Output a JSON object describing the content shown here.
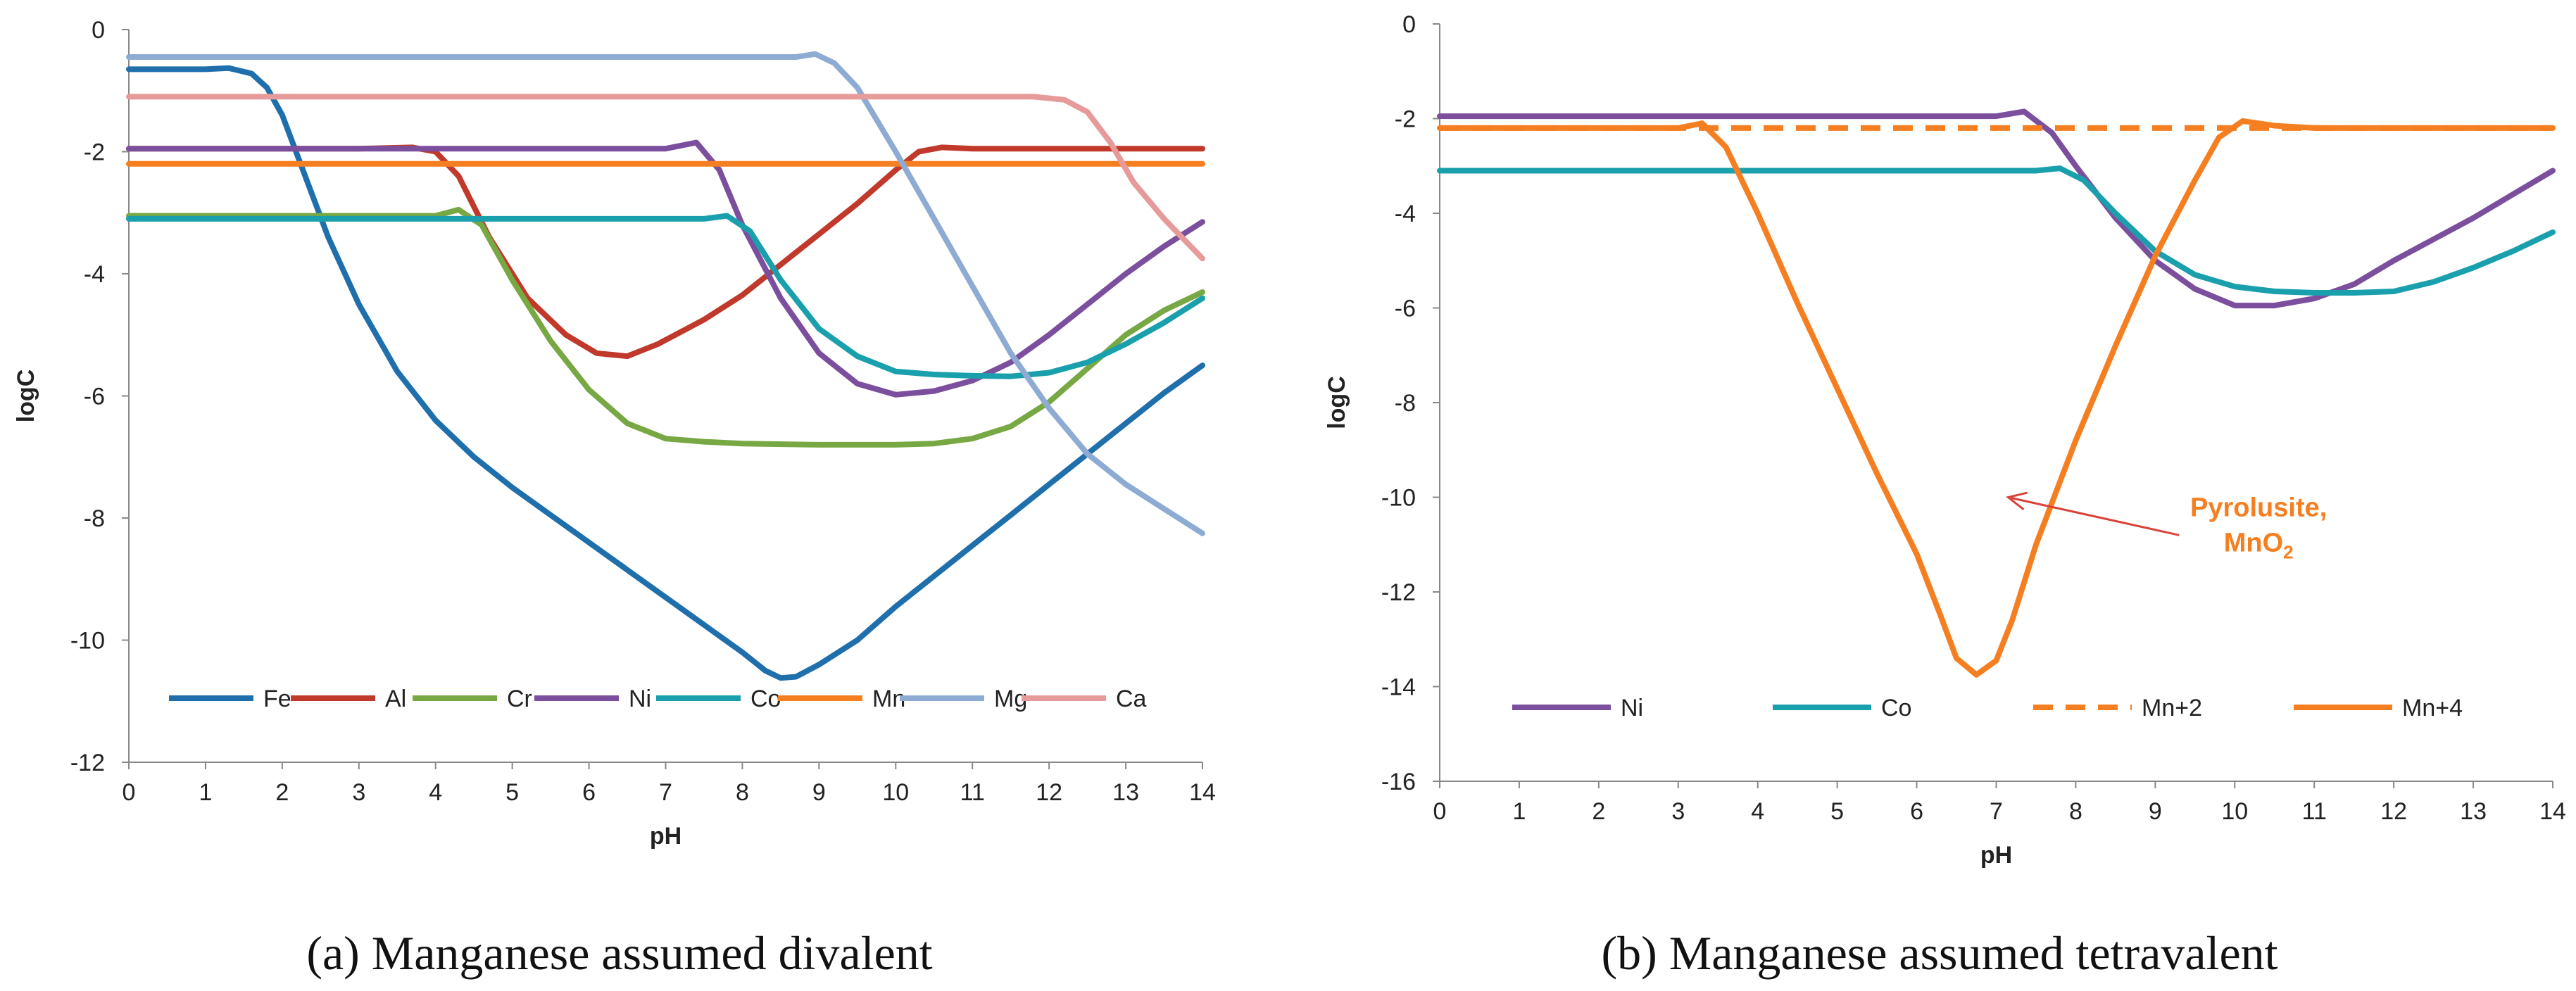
{
  "chart_data": [
    {
      "type": "line",
      "caption": "(a) Manganese assumed divalent",
      "xlabel": "pH",
      "ylabel": "logC",
      "xlim": [
        0,
        14
      ],
      "ylim": [
        -12,
        0
      ],
      "xticks": [
        0,
        1,
        2,
        3,
        4,
        5,
        6,
        7,
        8,
        9,
        10,
        11,
        12,
        13,
        14
      ],
      "yticks": [
        0,
        -2,
        -4,
        -6,
        -8,
        -10,
        -12
      ],
      "grid": false,
      "legend_position": "bottom-inside",
      "series": [
        {
          "name": "Fe",
          "color": "#1f6fad",
          "dash": false,
          "points": [
            [
              0,
              -0.65
            ],
            [
              0.5,
              -0.65
            ],
            [
              1,
              -0.65
            ],
            [
              1.3,
              -0.63
            ],
            [
              1.6,
              -0.72
            ],
            [
              1.8,
              -0.95
            ],
            [
              2,
              -1.4
            ],
            [
              2.3,
              -2.4
            ],
            [
              2.6,
              -3.4
            ],
            [
              3,
              -4.5
            ],
            [
              3.5,
              -5.6
            ],
            [
              4,
              -6.4
            ],
            [
              4.5,
              -7
            ],
            [
              5,
              -7.5
            ],
            [
              5.5,
              -7.95
            ],
            [
              6,
              -8.4
            ],
            [
              6.5,
              -8.85
            ],
            [
              7,
              -9.3
            ],
            [
              7.5,
              -9.75
            ],
            [
              8,
              -10.2
            ],
            [
              8.3,
              -10.5
            ],
            [
              8.5,
              -10.62
            ],
            [
              8.7,
              -10.6
            ],
            [
              9,
              -10.4
            ],
            [
              9.5,
              -10
            ],
            [
              10,
              -9.45
            ],
            [
              10.5,
              -8.95
            ],
            [
              11,
              -8.45
            ],
            [
              11.5,
              -7.95
            ],
            [
              12,
              -7.45
            ],
            [
              12.5,
              -6.95
            ],
            [
              13,
              -6.45
            ],
            [
              13.5,
              -5.95
            ],
            [
              14,
              -5.5
            ]
          ]
        },
        {
          "name": "Al",
          "color": "#c0392b",
          "dash": false,
          "points": [
            [
              0,
              -1.95
            ],
            [
              1,
              -1.95
            ],
            [
              2,
              -1.95
            ],
            [
              3,
              -1.95
            ],
            [
              3.7,
              -1.93
            ],
            [
              4,
              -2.0
            ],
            [
              4.3,
              -2.4
            ],
            [
              4.7,
              -3.4
            ],
            [
              5.2,
              -4.4
            ],
            [
              5.7,
              -5.0
            ],
            [
              6.1,
              -5.3
            ],
            [
              6.5,
              -5.35
            ],
            [
              6.9,
              -5.15
            ],
            [
              7.5,
              -4.75
            ],
            [
              8,
              -4.35
            ],
            [
              8.5,
              -3.85
            ],
            [
              9,
              -3.35
            ],
            [
              9.5,
              -2.85
            ],
            [
              10,
              -2.3
            ],
            [
              10.3,
              -2.0
            ],
            [
              10.6,
              -1.93
            ],
            [
              11,
              -1.95
            ],
            [
              12,
              -1.95
            ],
            [
              13,
              -1.95
            ],
            [
              14,
              -1.95
            ]
          ]
        },
        {
          "name": "Cr",
          "color": "#77a843",
          "dash": false,
          "points": [
            [
              0,
              -3.05
            ],
            [
              1,
              -3.05
            ],
            [
              2,
              -3.05
            ],
            [
              3,
              -3.05
            ],
            [
              4,
              -3.05
            ],
            [
              4.3,
              -2.95
            ],
            [
              4.6,
              -3.2
            ],
            [
              5,
              -4.1
            ],
            [
              5.5,
              -5.1
            ],
            [
              6,
              -5.9
            ],
            [
              6.5,
              -6.45
            ],
            [
              7,
              -6.7
            ],
            [
              7.5,
              -6.75
            ],
            [
              8,
              -6.78
            ],
            [
              9,
              -6.8
            ],
            [
              10,
              -6.8
            ],
            [
              10.5,
              -6.78
            ],
            [
              11,
              -6.7
            ],
            [
              11.5,
              -6.5
            ],
            [
              12,
              -6.1
            ],
            [
              12.5,
              -5.55
            ],
            [
              13,
              -5.0
            ],
            [
              13.5,
              -4.6
            ],
            [
              14,
              -4.3
            ]
          ]
        },
        {
          "name": "Ni",
          "color": "#7b4f9d",
          "dash": false,
          "points": [
            [
              0,
              -1.95
            ],
            [
              1,
              -1.95
            ],
            [
              2,
              -1.95
            ],
            [
              3,
              -1.95
            ],
            [
              4,
              -1.95
            ],
            [
              5,
              -1.95
            ],
            [
              6,
              -1.95
            ],
            [
              7,
              -1.95
            ],
            [
              7.4,
              -1.85
            ],
            [
              7.7,
              -2.3
            ],
            [
              8,
              -3.2
            ],
            [
              8.5,
              -4.4
            ],
            [
              9,
              -5.3
            ],
            [
              9.5,
              -5.8
            ],
            [
              10,
              -5.98
            ],
            [
              10.5,
              -5.92
            ],
            [
              11,
              -5.75
            ],
            [
              11.5,
              -5.45
            ],
            [
              12,
              -5.0
            ],
            [
              12.5,
              -4.5
            ],
            [
              13,
              -4.0
            ],
            [
              13.5,
              -3.55
            ],
            [
              14,
              -3.15
            ]
          ]
        },
        {
          "name": "Co",
          "color": "#1aa0ad",
          "dash": false,
          "points": [
            [
              0,
              -3.1
            ],
            [
              1,
              -3.1
            ],
            [
              2,
              -3.1
            ],
            [
              3,
              -3.1
            ],
            [
              4,
              -3.1
            ],
            [
              5,
              -3.1
            ],
            [
              6,
              -3.1
            ],
            [
              7,
              -3.1
            ],
            [
              7.5,
              -3.1
            ],
            [
              7.8,
              -3.05
            ],
            [
              8.1,
              -3.3
            ],
            [
              8.5,
              -4.1
            ],
            [
              9,
              -4.9
            ],
            [
              9.5,
              -5.35
            ],
            [
              10,
              -5.6
            ],
            [
              10.5,
              -5.65
            ],
            [
              11,
              -5.67
            ],
            [
              11.5,
              -5.68
            ],
            [
              12,
              -5.62
            ],
            [
              12.5,
              -5.45
            ],
            [
              13,
              -5.15
            ],
            [
              13.5,
              -4.8
            ],
            [
              14,
              -4.4
            ]
          ]
        },
        {
          "name": "Mn",
          "color": "#f57f20",
          "dash": false,
          "points": [
            [
              0,
              -2.2
            ],
            [
              14,
              -2.2
            ]
          ]
        },
        {
          "name": "Mg",
          "color": "#8eacd3",
          "dash": false,
          "points": [
            [
              0,
              -0.45
            ],
            [
              1,
              -0.45
            ],
            [
              2,
              -0.45
            ],
            [
              3,
              -0.45
            ],
            [
              4,
              -0.45
            ],
            [
              5,
              -0.45
            ],
            [
              6,
              -0.45
            ],
            [
              7,
              -0.45
            ],
            [
              8,
              -0.45
            ],
            [
              8.7,
              -0.45
            ],
            [
              8.95,
              -0.4
            ],
            [
              9.2,
              -0.55
            ],
            [
              9.5,
              -0.95
            ],
            [
              10,
              -2.0
            ],
            [
              10.5,
              -3.1
            ],
            [
              11,
              -4.2
            ],
            [
              11.5,
              -5.3
            ],
            [
              12,
              -6.2
            ],
            [
              12.5,
              -6.95
            ],
            [
              13,
              -7.45
            ],
            [
              13.5,
              -7.85
            ],
            [
              14,
              -8.25
            ]
          ]
        },
        {
          "name": "Ca",
          "color": "#e79a9a",
          "dash": false,
          "points": [
            [
              0,
              -1.1
            ],
            [
              1,
              -1.1
            ],
            [
              2,
              -1.1
            ],
            [
              3,
              -1.1
            ],
            [
              4,
              -1.1
            ],
            [
              5,
              -1.1
            ],
            [
              6,
              -1.1
            ],
            [
              7,
              -1.1
            ],
            [
              8,
              -1.1
            ],
            [
              9,
              -1.1
            ],
            [
              10,
              -1.1
            ],
            [
              11,
              -1.1
            ],
            [
              11.8,
              -1.1
            ],
            [
              12.2,
              -1.15
            ],
            [
              12.5,
              -1.35
            ],
            [
              12.8,
              -1.85
            ],
            [
              13.1,
              -2.5
            ],
            [
              13.5,
              -3.1
            ],
            [
              14,
              -3.75
            ]
          ]
        }
      ]
    },
    {
      "type": "line",
      "caption": "(b) Manganese assumed tetravalent",
      "xlabel": "pH",
      "ylabel": "logC",
      "xlim": [
        0,
        14
      ],
      "ylim": [
        -16,
        0
      ],
      "xticks": [
        0,
        1,
        2,
        3,
        4,
        5,
        6,
        7,
        8,
        9,
        10,
        11,
        12,
        13,
        14
      ],
      "yticks": [
        0,
        -2,
        -4,
        -6,
        -8,
        -10,
        -12,
        -14,
        -16
      ],
      "grid": false,
      "legend_position": "bottom-inside",
      "annotation": {
        "text_line1": "Pyrolusite,",
        "text_line2_base": "MnO",
        "text_line2_sub": "2",
        "color": "#f57f20",
        "arrow_color": "#d9433a",
        "arrow_from": [
          9.3,
          -10.8
        ],
        "arrow_to": [
          7.15,
          -10.0
        ],
        "text_pos": [
          10.3,
          -10.4
        ]
      },
      "series": [
        {
          "name": "Ni",
          "color": "#7b4f9d",
          "dash": false,
          "points": [
            [
              0,
              -1.95
            ],
            [
              1,
              -1.95
            ],
            [
              2,
              -1.95
            ],
            [
              3,
              -1.95
            ],
            [
              4,
              -1.95
            ],
            [
              5,
              -1.95
            ],
            [
              6,
              -1.95
            ],
            [
              7,
              -1.95
            ],
            [
              7.35,
              -1.85
            ],
            [
              7.7,
              -2.3
            ],
            [
              8,
              -3.0
            ],
            [
              8.5,
              -4.1
            ],
            [
              9,
              -5.0
            ],
            [
              9.5,
              -5.6
            ],
            [
              10,
              -5.95
            ],
            [
              10.5,
              -5.95
            ],
            [
              11,
              -5.8
            ],
            [
              11.5,
              -5.5
            ],
            [
              12,
              -5.0
            ],
            [
              12.5,
              -4.55
            ],
            [
              13,
              -4.1
            ],
            [
              13.5,
              -3.6
            ],
            [
              14,
              -3.1
            ]
          ]
        },
        {
          "name": "Co",
          "color": "#1aa0ad",
          "dash": false,
          "points": [
            [
              0,
              -3.1
            ],
            [
              1,
              -3.1
            ],
            [
              2,
              -3.1
            ],
            [
              3,
              -3.1
            ],
            [
              4,
              -3.1
            ],
            [
              5,
              -3.1
            ],
            [
              6,
              -3.1
            ],
            [
              7,
              -3.1
            ],
            [
              7.5,
              -3.1
            ],
            [
              7.8,
              -3.05
            ],
            [
              8.1,
              -3.3
            ],
            [
              8.5,
              -4.0
            ],
            [
              9,
              -4.8
            ],
            [
              9.5,
              -5.3
            ],
            [
              10,
              -5.55
            ],
            [
              10.5,
              -5.65
            ],
            [
              11,
              -5.68
            ],
            [
              11.5,
              -5.68
            ],
            [
              12,
              -5.65
            ],
            [
              12.5,
              -5.45
            ],
            [
              13,
              -5.15
            ],
            [
              13.5,
              -4.8
            ],
            [
              14,
              -4.4
            ]
          ]
        },
        {
          "name": "Mn+2",
          "color": "#f57f20",
          "dash": true,
          "points": [
            [
              0,
              -2.2
            ],
            [
              14,
              -2.2
            ]
          ]
        },
        {
          "name": "Mn+4",
          "color": "#f57f20",
          "dash": false,
          "points": [
            [
              0,
              -2.2
            ],
            [
              1,
              -2.2
            ],
            [
              2,
              -2.2
            ],
            [
              3,
              -2.2
            ],
            [
              3.3,
              -2.1
            ],
            [
              3.6,
              -2.6
            ],
            [
              4,
              -4.0
            ],
            [
              4.5,
              -5.9
            ],
            [
              5,
              -7.7
            ],
            [
              5.5,
              -9.5
            ],
            [
              6,
              -11.2
            ],
            [
              6.3,
              -12.5
            ],
            [
              6.5,
              -13.4
            ],
            [
              6.75,
              -13.75
            ],
            [
              7,
              -13.45
            ],
            [
              7.2,
              -12.6
            ],
            [
              7.5,
              -11.0
            ],
            [
              8,
              -8.8
            ],
            [
              8.5,
              -6.8
            ],
            [
              9,
              -4.9
            ],
            [
              9.5,
              -3.3
            ],
            [
              9.8,
              -2.4
            ],
            [
              10.1,
              -2.05
            ],
            [
              10.5,
              -2.15
            ],
            [
              11,
              -2.2
            ],
            [
              12,
              -2.2
            ],
            [
              13,
              -2.2
            ],
            [
              14,
              -2.2
            ]
          ]
        }
      ]
    }
  ]
}
